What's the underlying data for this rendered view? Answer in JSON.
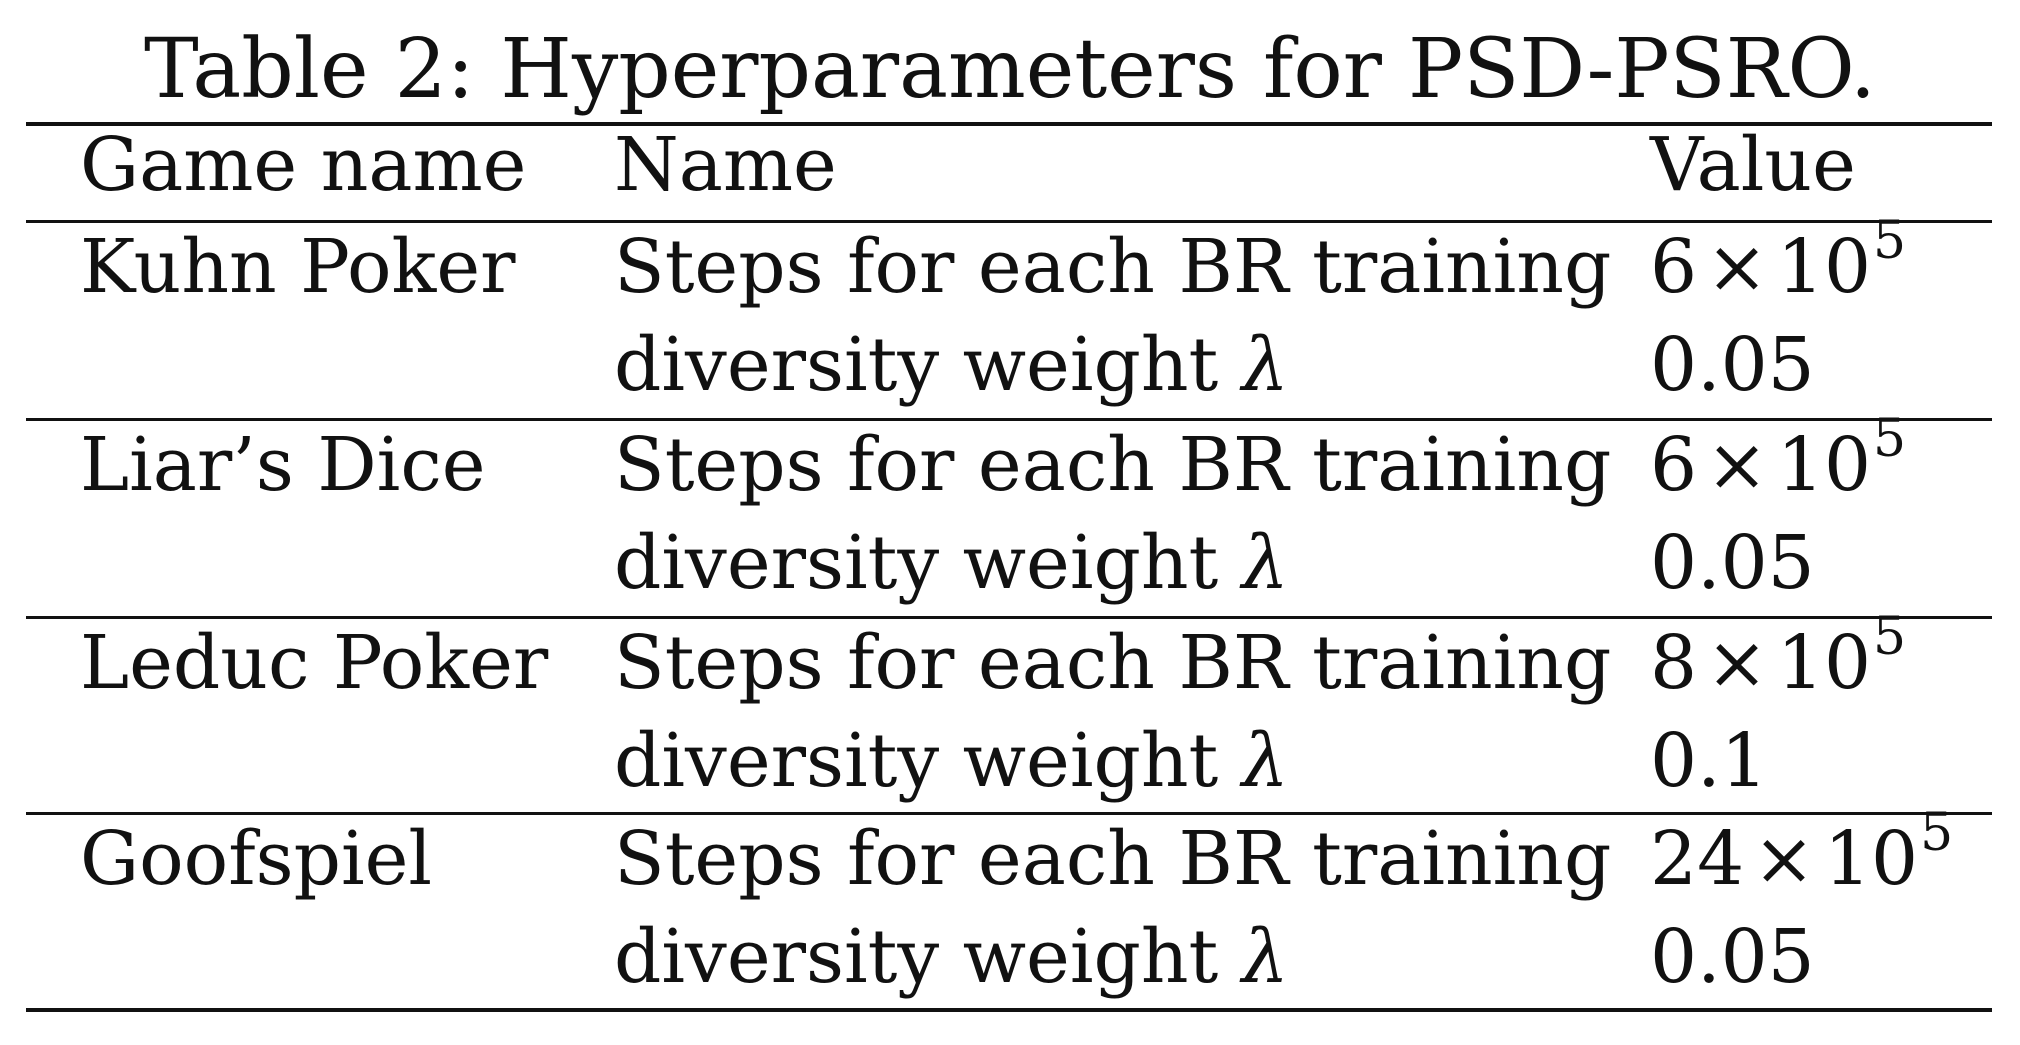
{
  "caption": "Table 2: Hyperparameters for PSD-PSRO.",
  "headers": [
    "Game name",
    "Name",
    "Value"
  ],
  "groups": [
    {
      "game": "Kuhn Poker",
      "rows": [
        {
          "name": "Steps for each BR training",
          "value_coef": "6",
          "value_times": "×",
          "value_base": "10",
          "value_exp": "5"
        },
        {
          "name_text": "diversity weight",
          "name_symbol": "λ",
          "value": "0.05"
        }
      ]
    },
    {
      "game": "Liar’s Dice",
      "rows": [
        {
          "name": "Steps for each BR training",
          "value_coef": "6",
          "value_times": "×",
          "value_base": "10",
          "value_exp": "5"
        },
        {
          "name_text": "diversity weight",
          "name_symbol": "λ",
          "value": "0.05"
        }
      ]
    },
    {
      "game": "Leduc Poker",
      "rows": [
        {
          "name": "Steps for each BR training",
          "value_coef": "8",
          "value_times": "×",
          "value_base": "10",
          "value_exp": "5"
        },
        {
          "name_text": "diversity weight",
          "name_symbol": "λ",
          "value": "0.1"
        }
      ]
    },
    {
      "game": "Goofspiel",
      "rows": [
        {
          "name": "Steps for each BR training",
          "value_coef": "24",
          "value_times": "×",
          "value_base": "10",
          "value_exp": "5"
        },
        {
          "name_text": "diversity weight",
          "name_symbol": "λ",
          "value": "0.05"
        }
      ]
    }
  ]
}
